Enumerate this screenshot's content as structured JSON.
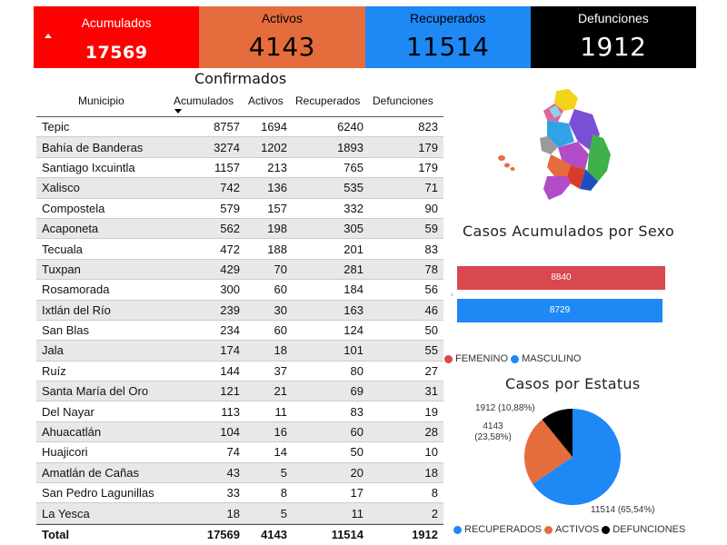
{
  "kpis": {
    "acumulados": {
      "label": "Acumulados",
      "value": "17569"
    },
    "activos": {
      "label": "Activos",
      "value": "4143"
    },
    "recuperados": {
      "label": "Recuperados",
      "value": "11514"
    },
    "defunciones": {
      "label": "Defunciones",
      "value": "1912"
    }
  },
  "table": {
    "title": "Confirmados",
    "headers": {
      "municipio": "Municipio",
      "acumulados": "Acumulados",
      "activos": "Activos",
      "recuperados": "Recuperados",
      "defunciones": "Defunciones"
    },
    "rows": [
      {
        "municipio": "Tepic",
        "acumulados": "8757",
        "activos": "1694",
        "recuperados": "6240",
        "defunciones": "823"
      },
      {
        "municipio": "Bahía de Banderas",
        "acumulados": "3274",
        "activos": "1202",
        "recuperados": "1893",
        "defunciones": "179"
      },
      {
        "municipio": "Santiago Ixcuintla",
        "acumulados": "1157",
        "activos": "213",
        "recuperados": "765",
        "defunciones": "179"
      },
      {
        "municipio": "Xalisco",
        "acumulados": "742",
        "activos": "136",
        "recuperados": "535",
        "defunciones": "71"
      },
      {
        "municipio": "Compostela",
        "acumulados": "579",
        "activos": "157",
        "recuperados": "332",
        "defunciones": "90"
      },
      {
        "municipio": "Acaponeta",
        "acumulados": "562",
        "activos": "198",
        "recuperados": "305",
        "defunciones": "59"
      },
      {
        "municipio": "Tecuala",
        "acumulados": "472",
        "activos": "188",
        "recuperados": "201",
        "defunciones": "83"
      },
      {
        "municipio": "Tuxpan",
        "acumulados": "429",
        "activos": "70",
        "recuperados": "281",
        "defunciones": "78"
      },
      {
        "municipio": "Rosamorada",
        "acumulados": "300",
        "activos": "60",
        "recuperados": "184",
        "defunciones": "56"
      },
      {
        "municipio": "Ixtlán del Río",
        "acumulados": "239",
        "activos": "30",
        "recuperados": "163",
        "defunciones": "46"
      },
      {
        "municipio": "San Blas",
        "acumulados": "234",
        "activos": "60",
        "recuperados": "124",
        "defunciones": "50"
      },
      {
        "municipio": "Jala",
        "acumulados": "174",
        "activos": "18",
        "recuperados": "101",
        "defunciones": "55"
      },
      {
        "municipio": "Ruíz",
        "acumulados": "144",
        "activos": "37",
        "recuperados": "80",
        "defunciones": "27"
      },
      {
        "municipio": "Santa María del Oro",
        "acumulados": "121",
        "activos": "21",
        "recuperados": "69",
        "defunciones": "31"
      },
      {
        "municipio": "Del Nayar",
        "acumulados": "113",
        "activos": "11",
        "recuperados": "83",
        "defunciones": "19"
      },
      {
        "municipio": "Ahuacatlán",
        "acumulados": "104",
        "activos": "16",
        "recuperados": "60",
        "defunciones": "28"
      },
      {
        "municipio": "Huajicori",
        "acumulados": "74",
        "activos": "14",
        "recuperados": "50",
        "defunciones": "10"
      },
      {
        "municipio": "Amatlán de Cañas",
        "acumulados": "43",
        "activos": "5",
        "recuperados": "20",
        "defunciones": "18"
      },
      {
        "municipio": "San Pedro Lagunillas",
        "acumulados": "33",
        "activos": "8",
        "recuperados": "17",
        "defunciones": "8"
      },
      {
        "municipio": "La Yesca",
        "acumulados": "18",
        "activos": "5",
        "recuperados": "11",
        "defunciones": "2"
      }
    ],
    "total": {
      "municipio": "Total",
      "acumulados": "17569",
      "activos": "4143",
      "recuperados": "11514",
      "defunciones": "1912"
    }
  },
  "sex_chart": {
    "title": "Casos Acumulados por Sexo",
    "bars": [
      {
        "name": "FEMENINO",
        "label": "8840",
        "value": 8840,
        "color": "#d9474f"
      },
      {
        "name": "MASCULINO",
        "label": "8729",
        "value": 8729,
        "color": "#1e88f5"
      }
    ],
    "legend": [
      "FEMENINO",
      "MASCULINO"
    ]
  },
  "status_chart": {
    "title": "Casos por Estatus",
    "slices": [
      {
        "name": "RECUPERADOS",
        "value": 11514,
        "label": "11514 (65,54%)",
        "color": "#1e88f5"
      },
      {
        "name": "ACTIVOS",
        "value": 4143,
        "label": "4143 (23,58%)",
        "color": "#e56c3c"
      },
      {
        "name": "DEFUNCIONES",
        "value": 1912,
        "label": "1912 (10,88%)",
        "color": "#000000"
      }
    ],
    "legend": [
      "RECUPERADOS",
      "ACTIVOS",
      "DEFUNCIONES"
    ]
  },
  "chart_data": [
    {
      "type": "bar",
      "title": "Casos Acumulados por Sexo",
      "categories": [
        "FEMENINO",
        "MASCULINO"
      ],
      "values": [
        8840,
        8729
      ]
    },
    {
      "type": "pie",
      "title": "Casos por Estatus",
      "categories": [
        "RECUPERADOS",
        "ACTIVOS",
        "DEFUNCIONES"
      ],
      "values": [
        11514,
        4143,
        1912
      ],
      "labels": [
        "11514 (65,54%)",
        "4143 (23,58%)",
        "1912 (10,88%)"
      ]
    }
  ],
  "map": {
    "region_colors": [
      "#f2d21a",
      "#7a4fd6",
      "#3fb04a",
      "#e8609c",
      "#2fa3e6",
      "#b34cc9",
      "#e56c3c",
      "#9a9a9a",
      "#1d4fc2",
      "#d83b2a",
      "#8dd0e0"
    ]
  }
}
